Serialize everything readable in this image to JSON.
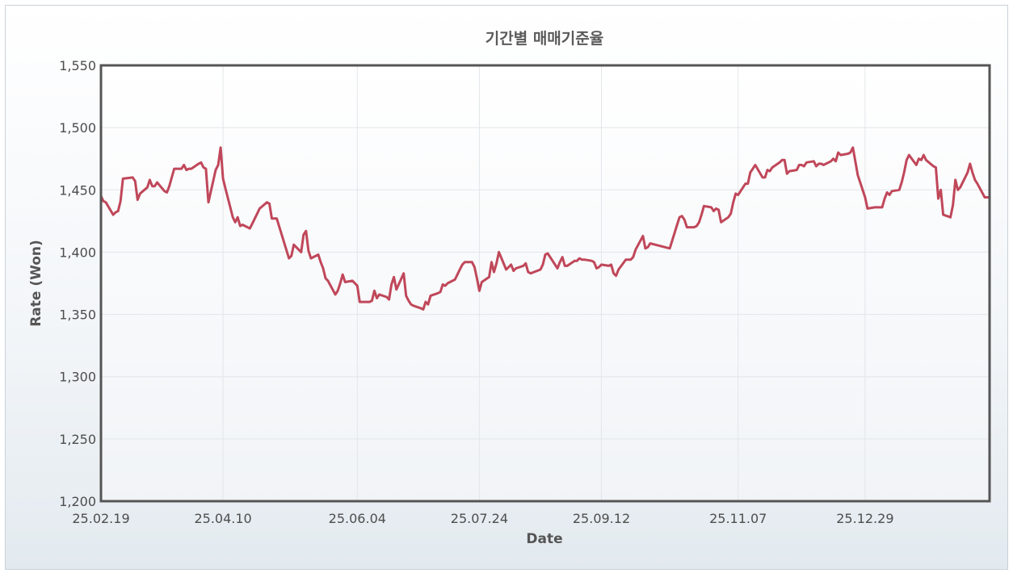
{
  "chart_data": {
    "type": "line",
    "title": "기간별 매매기준율",
    "xlabel": "Date",
    "ylabel": "Rate (Won)",
    "ylim": [
      1200,
      1550
    ],
    "yticks": [
      "1,200",
      "1,250",
      "1,300",
      "1,350",
      "1,400",
      "1,450",
      "1,500",
      "1,550"
    ],
    "xticks": [
      "25.02.19",
      "25.04.10",
      "25.06.04",
      "25.07.24",
      "25.09.12",
      "25.11.07",
      "25.12.29"
    ],
    "grid": true,
    "colors": {
      "line": "#c0475a",
      "plot_border": "#555555",
      "grid": "#e2e6ea"
    },
    "series": [
      {
        "x": [
          "2025-02-19",
          "2025-02-20",
          "2025-02-21",
          "2025-02-24",
          "2025-02-25",
          "2025-02-26",
          "2025-02-27",
          "2025-02-28",
          "2025-03-04",
          "2025-03-05",
          "2025-03-06",
          "2025-03-07",
          "2025-03-10",
          "2025-03-11",
          "2025-03-12",
          "2025-03-13",
          "2025-03-14",
          "2025-03-17",
          "2025-03-18",
          "2025-03-19",
          "2025-03-20",
          "2025-03-21",
          "2025-03-24",
          "2025-03-25",
          "2025-03-26",
          "2025-03-27",
          "2025-03-28",
          "2025-03-31",
          "2025-04-01",
          "2025-04-02",
          "2025-04-03",
          "2025-04-04",
          "2025-04-07",
          "2025-04-08",
          "2025-04-09",
          "2025-04-10",
          "2025-04-11",
          "2025-04-14",
          "2025-04-15",
          "2025-04-16",
          "2025-04-17",
          "2025-04-18",
          "2025-04-21",
          "2025-04-22",
          "2025-04-23",
          "2025-04-24",
          "2025-04-25",
          "2025-04-28",
          "2025-04-29",
          "2025-04-30",
          "2025-05-02",
          "2025-05-07",
          "2025-05-08",
          "2025-05-09",
          "2025-05-12",
          "2025-05-13",
          "2025-05-14",
          "2025-05-15",
          "2025-05-16",
          "2025-05-19",
          "2025-05-20",
          "2025-05-21",
          "2025-05-22",
          "2025-05-23",
          "2025-05-26",
          "2025-05-27",
          "2025-05-28",
          "2025-05-29",
          "2025-05-30",
          "2025-06-02",
          "2025-06-04",
          "2025-06-05",
          "2025-06-09",
          "2025-06-10",
          "2025-06-11",
          "2025-06-12",
          "2025-06-13",
          "2025-06-16",
          "2025-06-17",
          "2025-06-18",
          "2025-06-19",
          "2025-06-20",
          "2025-06-23",
          "2025-06-24",
          "2025-06-25",
          "2025-06-26",
          "2025-06-27",
          "2025-06-30",
          "2025-07-01",
          "2025-07-02",
          "2025-07-03",
          "2025-07-04",
          "2025-07-07",
          "2025-07-08",
          "2025-07-09",
          "2025-07-10",
          "2025-07-11",
          "2025-07-14",
          "2025-07-15",
          "2025-07-16",
          "2025-07-17",
          "2025-07-18",
          "2025-07-21",
          "2025-07-22",
          "2025-07-23",
          "2025-07-24",
          "2025-07-25",
          "2025-07-28",
          "2025-07-29",
          "2025-07-30",
          "2025-07-31",
          "2025-08-01",
          "2025-08-04",
          "2025-08-05",
          "2025-08-06",
          "2025-08-07",
          "2025-08-08",
          "2025-08-11",
          "2025-08-12",
          "2025-08-13",
          "2025-08-14",
          "2025-08-18",
          "2025-08-19",
          "2025-08-20",
          "2025-08-21",
          "2025-08-22",
          "2025-08-25",
          "2025-08-26",
          "2025-08-27",
          "2025-08-28",
          "2025-08-29",
          "2025-09-01",
          "2025-09-02",
          "2025-09-03",
          "2025-09-04",
          "2025-09-05",
          "2025-09-08",
          "2025-09-09",
          "2025-09-10",
          "2025-09-11",
          "2025-09-12",
          "2025-09-15",
          "2025-09-16",
          "2025-09-17",
          "2025-09-18",
          "2025-09-19",
          "2025-09-22",
          "2025-09-23",
          "2025-09-24",
          "2025-09-25",
          "2025-09-26",
          "2025-09-29",
          "2025-09-30",
          "2025-10-01",
          "2025-10-02",
          "2025-10-10",
          "2025-10-13",
          "2025-10-14",
          "2025-10-15",
          "2025-10-16",
          "2025-10-17",
          "2025-10-20",
          "2025-10-21",
          "2025-10-22",
          "2025-10-23",
          "2025-10-24",
          "2025-10-27",
          "2025-10-28",
          "2025-10-29",
          "2025-10-30",
          "2025-10-31",
          "2025-11-03",
          "2025-11-04",
          "2025-11-05",
          "2025-11-06",
          "2025-11-07",
          "2025-11-10",
          "2025-11-11",
          "2025-11-12",
          "2025-11-13",
          "2025-11-14",
          "2025-11-17",
          "2025-11-18",
          "2025-11-19",
          "2025-11-20",
          "2025-11-21",
          "2025-11-24",
          "2025-11-25",
          "2025-11-26",
          "2025-11-27",
          "2025-11-28",
          "2025-12-01",
          "2025-12-02",
          "2025-12-03",
          "2025-12-04",
          "2025-12-05",
          "2025-12-08",
          "2025-12-09",
          "2025-12-10",
          "2025-12-11",
          "2025-12-12",
          "2025-12-15",
          "2025-12-16",
          "2025-12-17",
          "2025-12-18",
          "2025-12-19",
          "2025-12-22",
          "2025-12-23",
          "2025-12-24",
          "2025-12-26",
          "2025-12-29",
          "2025-12-30",
          "2026-01-02",
          "2026-01-05",
          "2026-01-06",
          "2026-01-07",
          "2026-01-08",
          "2026-01-09",
          "2026-01-12",
          "2026-01-13",
          "2026-01-14",
          "2026-01-15",
          "2026-01-16",
          "2026-01-19",
          "2026-01-20",
          "2026-01-21",
          "2026-01-22",
          "2026-01-23",
          "2026-01-26",
          "2026-01-27",
          "2026-01-28",
          "2026-01-29",
          "2026-01-30",
          "2026-02-02",
          "2026-02-03",
          "2026-02-04",
          "2026-02-05",
          "2026-02-06",
          "2026-02-09",
          "2026-02-10",
          "2026-02-11",
          "2026-02-12",
          "2026-02-13",
          "2026-02-16",
          "2026-02-18"
        ],
        "values": [
          1445,
          1441,
          1440,
          1430,
          1432,
          1433,
          1441,
          1459,
          1460,
          1457,
          1442,
          1447,
          1452,
          1458,
          1453,
          1453,
          1456,
          1449,
          1448,
          1453,
          1460,
          1467,
          1467,
          1470,
          1466,
          1467,
          1467,
          1471,
          1472,
          1468,
          1467,
          1440,
          1466,
          1470,
          1484,
          1459,
          1451,
          1428,
          1424,
          1428,
          1421,
          1422,
          1419,
          1423,
          1427,
          1431,
          1435,
          1440,
          1439,
          1427,
          1427,
          1395,
          1397,
          1406,
          1400,
          1414,
          1417,
          1401,
          1395,
          1398,
          1392,
          1387,
          1379,
          1377,
          1366,
          1369,
          1375,
          1382,
          1376,
          1377,
          1373,
          1360,
          1360,
          1361,
          1369,
          1363,
          1366,
          1364,
          1362,
          1374,
          1380,
          1370,
          1383,
          1365,
          1361,
          1358,
          1357,
          1355,
          1354,
          1360,
          1358,
          1365,
          1367,
          1368,
          1374,
          1373,
          1375,
          1378,
          1382,
          1386,
          1390,
          1392,
          1392,
          1388,
          1379,
          1369,
          1376,
          1380,
          1392,
          1384,
          1391,
          1400,
          1386,
          1388,
          1390,
          1385,
          1387,
          1389,
          1391,
          1384,
          1383,
          1386,
          1390,
          1398,
          1399,
          1396,
          1387,
          1392,
          1396,
          1389,
          1389,
          1393,
          1393,
          1395,
          1394,
          1394,
          1393,
          1392,
          1387,
          1388,
          1390,
          1389,
          1390,
          1383,
          1381,
          1386,
          1394,
          1394,
          1394,
          1396,
          1402,
          1413,
          1403,
          1404,
          1407,
          1403,
          1422,
          1428,
          1429,
          1426,
          1420,
          1420,
          1421,
          1424,
          1430,
          1437,
          1436,
          1433,
          1435,
          1434,
          1424,
          1428,
          1431,
          1440,
          1447,
          1446,
          1455,
          1455,
          1464,
          1467,
          1470,
          1460,
          1460,
          1466,
          1465,
          1468,
          1472,
          1474,
          1474,
          1463,
          1465,
          1466,
          1470,
          1470,
          1469,
          1472,
          1473,
          1469,
          1471,
          1471,
          1470,
          1473,
          1475,
          1473,
          1480,
          1478,
          1479,
          1480,
          1484,
          1462,
          1444,
          1435,
          1436,
          1436,
          1443,
          1448,
          1446,
          1449,
          1450,
          1456,
          1464,
          1474,
          1478,
          1470,
          1475,
          1474,
          1478,
          1474,
          1469,
          1468,
          1443,
          1450,
          1430,
          1428,
          1438,
          1458,
          1450,
          1452,
          1464,
          1471,
          1464,
          1458,
          1455,
          1444,
          1444
        ]
      }
    ]
  }
}
